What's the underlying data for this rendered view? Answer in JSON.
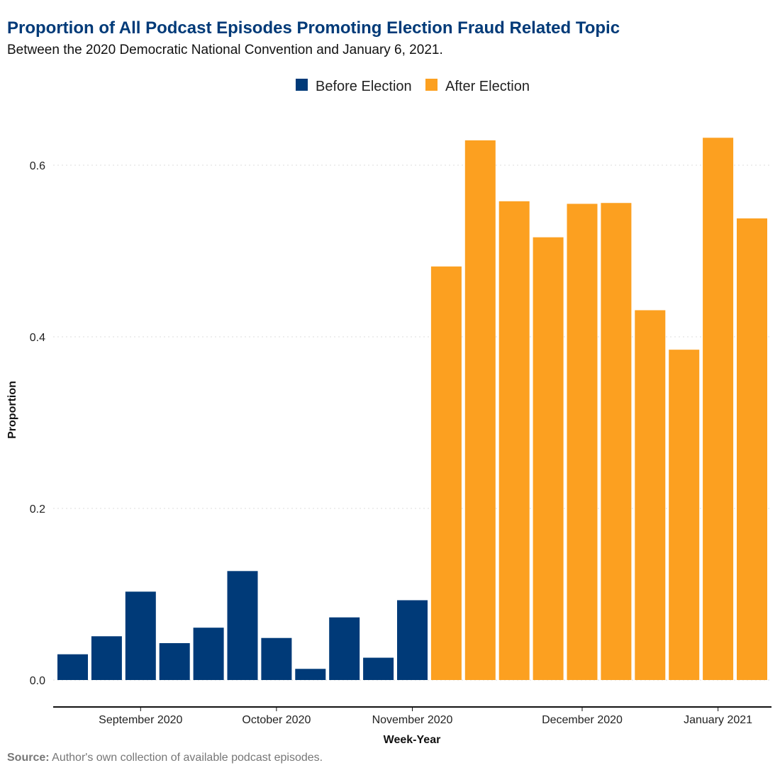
{
  "title": "Proportion of All Podcast Episodes Promoting Election Fraud Related Topic",
  "subtitle": "Between the 2020 Democratic National Convention and January 6, 2021.",
  "source_label": "Source:",
  "source_text": "Author's own collection of available podcast episodes.",
  "colors": {
    "before": "#003a78",
    "after": "#fca020"
  },
  "chart_data": {
    "type": "bar",
    "xlabel": "Week-Year",
    "ylabel": "Proportion",
    "ylim": [
      -0.03,
      0.66
    ],
    "y_ticks": [
      0.0,
      0.2,
      0.4,
      0.6
    ],
    "y_tick_labels": [
      "0.0",
      "0.2",
      "0.4",
      "0.6"
    ],
    "grid": "horizontal dotted",
    "legend_position": "top",
    "x_ticks": [
      {
        "label": "September 2020",
        "week_index": 2
      },
      {
        "label": "October 2020",
        "week_index": 6
      },
      {
        "label": "November 2020",
        "week_index": 10
      },
      {
        "label": "December 2020",
        "week_index": 15
      },
      {
        "label": "January 2021",
        "week_index": 19
      }
    ],
    "series": [
      {
        "name": "Before Election",
        "week_index": [
          0,
          1,
          2,
          3,
          4,
          5,
          6,
          7,
          8,
          9,
          10
        ],
        "values": [
          0.03,
          0.051,
          0.103,
          0.043,
          0.061,
          0.127,
          0.049,
          0.013,
          0.073,
          0.026,
          0.093
        ]
      },
      {
        "name": "After Election",
        "week_index": [
          11,
          12,
          13,
          14,
          15,
          16,
          17,
          18,
          19,
          20
        ],
        "values": [
          0.482,
          0.629,
          0.558,
          0.516,
          0.555,
          0.556,
          0.431,
          0.385,
          0.632,
          0.538
        ]
      }
    ]
  }
}
